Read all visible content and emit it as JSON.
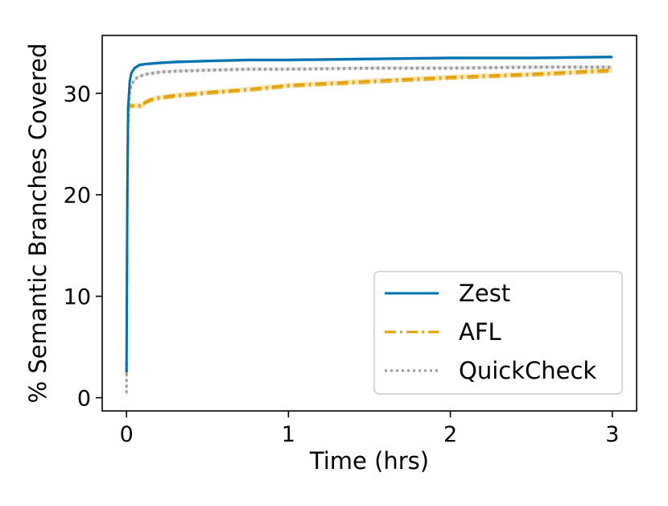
{
  "chart_data": {
    "type": "line",
    "title": "",
    "xlabel": "Time (hrs)",
    "ylabel": "% Semantic Branches Covered",
    "xlim": [
      -0.15,
      3.15
    ],
    "ylim": [
      -1.3,
      35.7
    ],
    "xticks": [
      0,
      1,
      2,
      3
    ],
    "yticks": [
      0,
      10,
      20,
      30
    ],
    "grid": false,
    "legend_position": "lower-right",
    "series": [
      {
        "name": "Zest",
        "color": "#0072b2",
        "style": "solid",
        "x": [
          0,
          0.005,
          0.01,
          0.02,
          0.03,
          0.05,
          0.08,
          0.12,
          0.2,
          0.3,
          0.5,
          0.75,
          1.0,
          1.5,
          2.0,
          2.5,
          3.0
        ],
        "y": [
          2.5,
          20,
          28.5,
          31.2,
          32.0,
          32.5,
          32.8,
          32.9,
          33.0,
          33.1,
          33.2,
          33.3,
          33.3,
          33.4,
          33.5,
          33.5,
          33.6
        ],
        "band": 0.1
      },
      {
        "name": "AFL",
        "color": "#e69f00",
        "style": "dashdot",
        "x": [
          0,
          0.005,
          0.01,
          0.02,
          0.05,
          0.1,
          0.11,
          0.15,
          0.2,
          0.3,
          0.5,
          0.75,
          1.0,
          1.5,
          2.0,
          2.5,
          3.0
        ],
        "y": [
          2.5,
          20,
          28.7,
          28.8,
          28.8,
          28.8,
          29.1,
          29.4,
          29.6,
          29.8,
          30.1,
          30.4,
          30.8,
          31.2,
          31.6,
          31.9,
          32.3
        ],
        "band": 0.25
      },
      {
        "name": "QuickCheck",
        "color": "#999999",
        "style": "dotted",
        "x": [
          0,
          0.005,
          0.01,
          0.02,
          0.03,
          0.05,
          0.08,
          0.12,
          0.2,
          0.3,
          0.5,
          0.75,
          1.0,
          1.5,
          2.0,
          2.5,
          3.0
        ],
        "y": [
          0.5,
          18,
          27,
          30.0,
          30.8,
          31.4,
          31.7,
          31.9,
          32.1,
          32.2,
          32.3,
          32.4,
          32.4,
          32.5,
          32.5,
          32.6,
          32.6
        ],
        "band": 0.15
      }
    ]
  }
}
